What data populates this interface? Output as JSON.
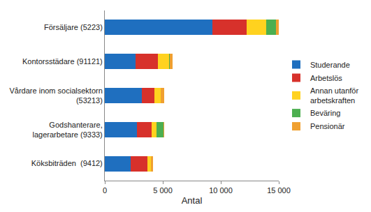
{
  "chart_data": {
    "type": "bar",
    "orientation": "horizontal",
    "stacked": true,
    "grid": false,
    "legend": "right",
    "xlabel": "Antal",
    "categories": [
      "Försäljare (5223)",
      "Kontorsstädare (91121)",
      "Vårdare inom socialsektorn\n(53213)",
      "Godshanterare,\nlagerarbetare (9333)",
      "Köksbiträden  (9412)"
    ],
    "series": [
      {
        "name": "Studerande",
        "color": "#1f6fbf",
        "values": [
          9300,
          2650,
          3200,
          2800,
          2250
        ]
      },
      {
        "name": "Arbetslös",
        "color": "#d7312b",
        "values": [
          2900,
          1950,
          1050,
          1250,
          1400
        ]
      },
      {
        "name": "Annan utanför\narbetskraften",
        "color": "#ffd21f",
        "values": [
          1700,
          950,
          550,
          400,
          300
        ]
      },
      {
        "name": "Beväring",
        "color": "#4caf50",
        "values": [
          850,
          30,
          30,
          600,
          30
        ]
      },
      {
        "name": "Pensionär",
        "color": "#f0a030",
        "values": [
          250,
          250,
          300,
          50,
          200
        ]
      }
    ],
    "xlim": [
      0,
      15000
    ],
    "xticks": [
      0,
      {
        "value": 5000,
        "label": "5 000"
      },
      {
        "value": 10000,
        "label": "10 000"
      },
      {
        "value": 15000,
        "label": "15 000"
      }
    ]
  }
}
